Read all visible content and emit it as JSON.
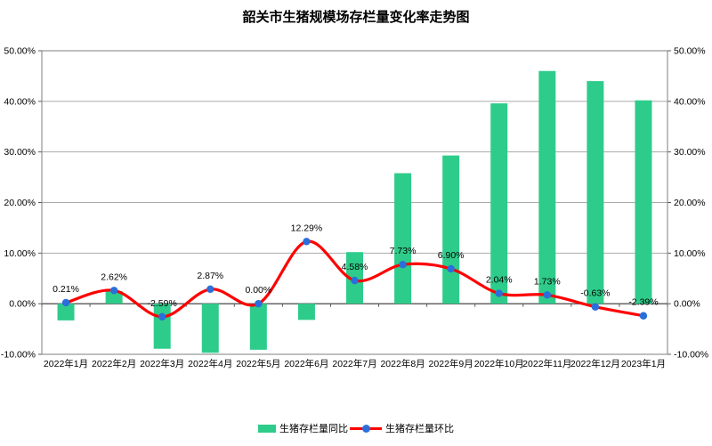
{
  "title": "韶关市生猪规模场存栏量变化率走势图",
  "legend": {
    "yoy_label": "生猪存栏量同比",
    "mom_label": "生猪存栏量环比"
  },
  "colors": {
    "background": "#ffffff",
    "bar": "#2ecc8a",
    "line": "#ff0000",
    "marker": "#2a6fdb",
    "grid": "#ababab",
    "border": "#7f7f7f",
    "zero_axis": "#595959",
    "text": "#000000"
  },
  "chart_data": {
    "type": "bar+line",
    "categories": [
      "2022年1月",
      "2022年2月",
      "2022年3月",
      "2022年4月",
      "2022年5月",
      "2022年6月",
      "2022年7月",
      "2022年8月",
      "2022年9月",
      "2022年10月",
      "2022年11月",
      "2022年12月",
      "2023年1月"
    ],
    "series": [
      {
        "name": "生猪存栏量同比",
        "chart": "bar",
        "values": [
          -3.3,
          2.5,
          -8.9,
          -9.7,
          -9.1,
          -3.2,
          10.2,
          25.8,
          29.3,
          39.6,
          46.0,
          44.0,
          40.2
        ]
      },
      {
        "name": "生猪存栏量环比",
        "chart": "line",
        "values": [
          0.21,
          2.62,
          -2.59,
          2.87,
          0.0,
          12.29,
          4.58,
          7.73,
          6.9,
          2.04,
          1.73,
          -0.63,
          -2.39
        ],
        "data_labels": [
          "0.21%",
          "2.62%",
          "-2.59%",
          "2.87%",
          "0.00%",
          "12.29%",
          "4.58%",
          "7.73%",
          "6.90%",
          "2.04%",
          "1.73%",
          "-0.63%",
          "-2.39%"
        ]
      }
    ],
    "title": "韶关市生猪规模场存栏量变化率走势图",
    "xlabel": "",
    "ylabel": "",
    "y_axis": {
      "ticks": [
        "50.00%",
        "40.00%",
        "30.00%",
        "20.00%",
        "10.00%",
        "0.00%",
        "-10.00%"
      ],
      "min": -10,
      "max": 50,
      "dual_axis": true
    },
    "grid": true,
    "legend_position": "bottom"
  }
}
